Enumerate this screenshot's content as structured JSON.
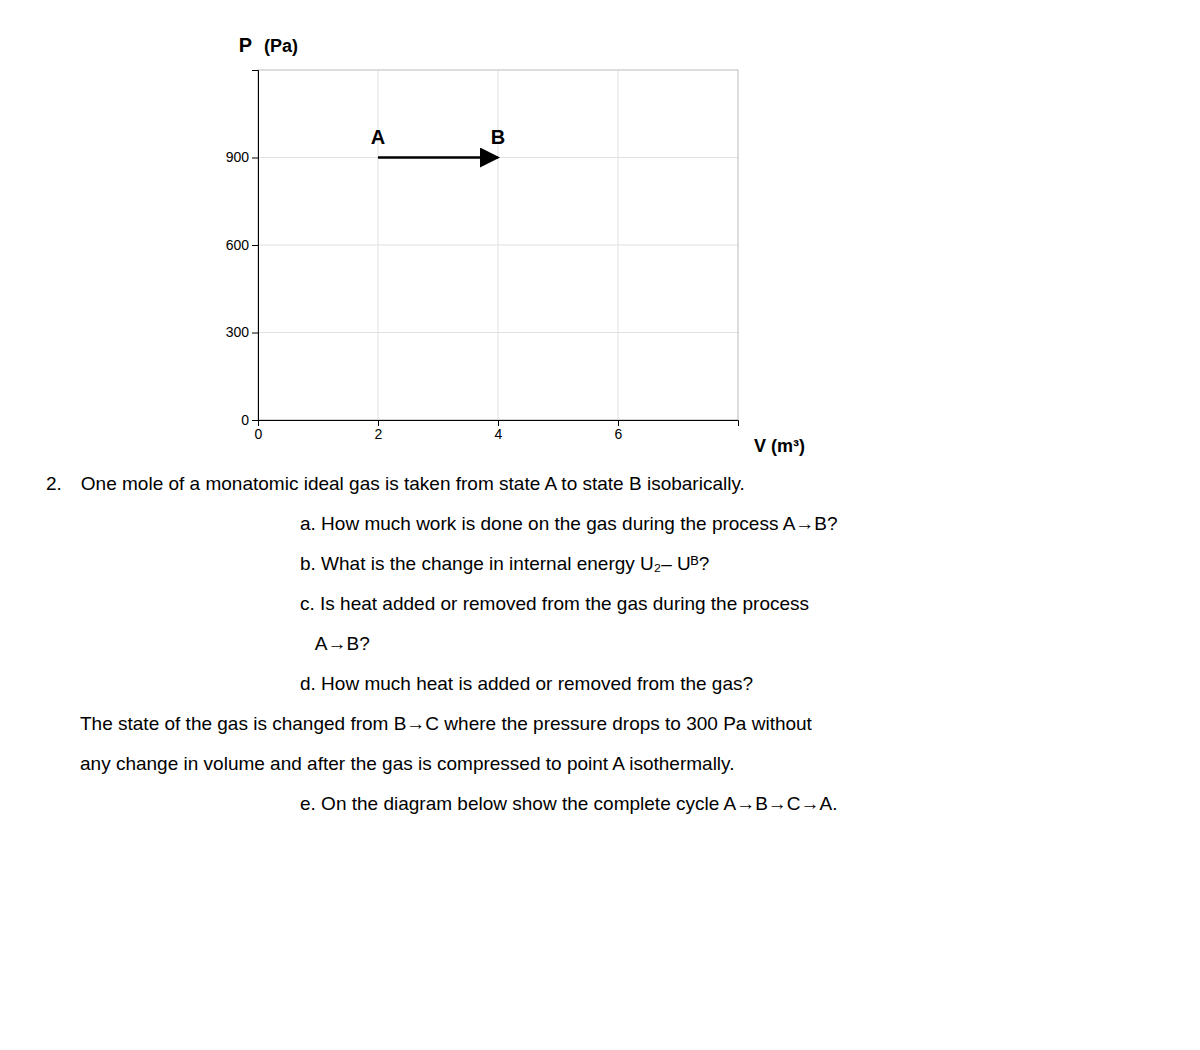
{
  "chart_data": {
    "type": "line",
    "x_label": "V (m³)",
    "y_label": "P",
    "y_label_unit": "(Pa)",
    "x": [
      2,
      4
    ],
    "series": [
      {
        "values": [
          900,
          900
        ],
        "color": "#000000",
        "marker": "arrow",
        "line_style": "solid",
        "point_labels": [
          "A",
          "B"
        ]
      }
    ],
    "xlim": [
      0,
      8
    ],
    "ylim": [
      0,
      1200
    ],
    "xticks": [
      0,
      2,
      4,
      6
    ],
    "yticks": [
      0,
      300,
      600,
      900
    ],
    "grid": true,
    "annotations": [
      "2. One mole of a monatomic ideal gas is taken from state A to state B isobarically.",
      "a. How much work is done on the gas during the process A→B?",
      "b. What is the change in internal energy U₂– Uᴮ?",
      "c. Is heat added or removed from the gas during the process",
      "   A→B?",
      "d. How much heat is added or removed from the gas?",
      "The state of the gas is changed from B→C where the pressure drops to 300 Pa without",
      "any change in volume and after the gas is compressed to point A isothermally.",
      "e. On the diagram below show the complete cycle A→B→C→A."
    ]
  }
}
